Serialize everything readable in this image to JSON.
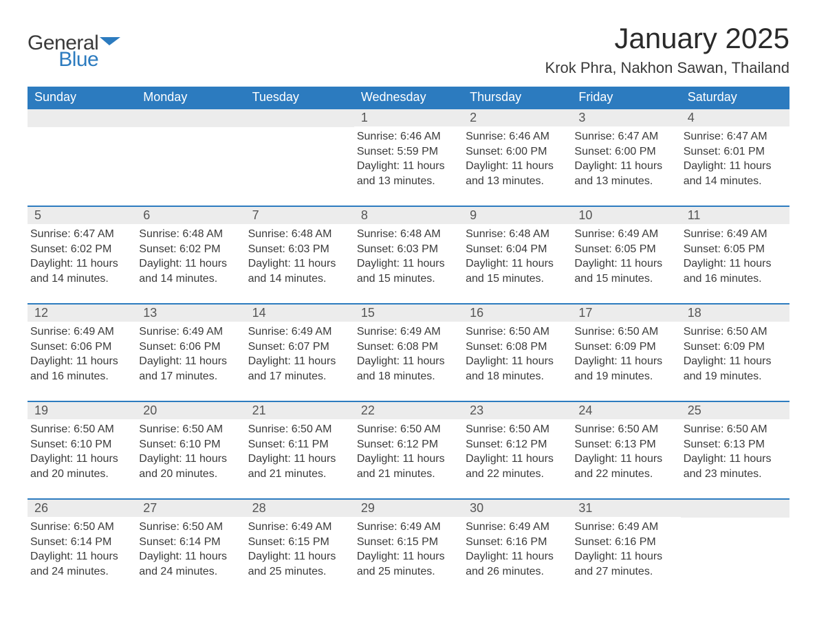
{
  "logo": {
    "text1": "General",
    "text2": "Blue",
    "flag_color": "#2c7bbf"
  },
  "title": "January 2025",
  "location": "Krok Phra, Nakhon Sawan, Thailand",
  "colors": {
    "header_bg": "#2c7bbf",
    "header_text": "#ffffff",
    "daynum_bg": "#ececec",
    "daynum_text": "#555555",
    "body_text": "#3a3a3a",
    "row_border": "#2c7bbf",
    "page_bg": "#ffffff"
  },
  "typography": {
    "title_fontsize": 42,
    "location_fontsize": 22,
    "header_fontsize": 18,
    "daynum_fontsize": 18,
    "body_fontsize": 16
  },
  "day_headers": [
    "Sunday",
    "Monday",
    "Tuesday",
    "Wednesday",
    "Thursday",
    "Friday",
    "Saturday"
  ],
  "weeks": [
    [
      {
        "blank": true
      },
      {
        "blank": true
      },
      {
        "blank": true
      },
      {
        "num": "1",
        "sunrise": "Sunrise: 6:46 AM",
        "sunset": "Sunset: 5:59 PM",
        "daylight1": "Daylight: 11 hours",
        "daylight2": "and 13 minutes."
      },
      {
        "num": "2",
        "sunrise": "Sunrise: 6:46 AM",
        "sunset": "Sunset: 6:00 PM",
        "daylight1": "Daylight: 11 hours",
        "daylight2": "and 13 minutes."
      },
      {
        "num": "3",
        "sunrise": "Sunrise: 6:47 AM",
        "sunset": "Sunset: 6:00 PM",
        "daylight1": "Daylight: 11 hours",
        "daylight2": "and 13 minutes."
      },
      {
        "num": "4",
        "sunrise": "Sunrise: 6:47 AM",
        "sunset": "Sunset: 6:01 PM",
        "daylight1": "Daylight: 11 hours",
        "daylight2": "and 14 minutes."
      }
    ],
    [
      {
        "num": "5",
        "sunrise": "Sunrise: 6:47 AM",
        "sunset": "Sunset: 6:02 PM",
        "daylight1": "Daylight: 11 hours",
        "daylight2": "and 14 minutes."
      },
      {
        "num": "6",
        "sunrise": "Sunrise: 6:48 AM",
        "sunset": "Sunset: 6:02 PM",
        "daylight1": "Daylight: 11 hours",
        "daylight2": "and 14 minutes."
      },
      {
        "num": "7",
        "sunrise": "Sunrise: 6:48 AM",
        "sunset": "Sunset: 6:03 PM",
        "daylight1": "Daylight: 11 hours",
        "daylight2": "and 14 minutes."
      },
      {
        "num": "8",
        "sunrise": "Sunrise: 6:48 AM",
        "sunset": "Sunset: 6:03 PM",
        "daylight1": "Daylight: 11 hours",
        "daylight2": "and 15 minutes."
      },
      {
        "num": "9",
        "sunrise": "Sunrise: 6:48 AM",
        "sunset": "Sunset: 6:04 PM",
        "daylight1": "Daylight: 11 hours",
        "daylight2": "and 15 minutes."
      },
      {
        "num": "10",
        "sunrise": "Sunrise: 6:49 AM",
        "sunset": "Sunset: 6:05 PM",
        "daylight1": "Daylight: 11 hours",
        "daylight2": "and 15 minutes."
      },
      {
        "num": "11",
        "sunrise": "Sunrise: 6:49 AM",
        "sunset": "Sunset: 6:05 PM",
        "daylight1": "Daylight: 11 hours",
        "daylight2": "and 16 minutes."
      }
    ],
    [
      {
        "num": "12",
        "sunrise": "Sunrise: 6:49 AM",
        "sunset": "Sunset: 6:06 PM",
        "daylight1": "Daylight: 11 hours",
        "daylight2": "and 16 minutes."
      },
      {
        "num": "13",
        "sunrise": "Sunrise: 6:49 AM",
        "sunset": "Sunset: 6:06 PM",
        "daylight1": "Daylight: 11 hours",
        "daylight2": "and 17 minutes."
      },
      {
        "num": "14",
        "sunrise": "Sunrise: 6:49 AM",
        "sunset": "Sunset: 6:07 PM",
        "daylight1": "Daylight: 11 hours",
        "daylight2": "and 17 minutes."
      },
      {
        "num": "15",
        "sunrise": "Sunrise: 6:49 AM",
        "sunset": "Sunset: 6:08 PM",
        "daylight1": "Daylight: 11 hours",
        "daylight2": "and 18 minutes."
      },
      {
        "num": "16",
        "sunrise": "Sunrise: 6:50 AM",
        "sunset": "Sunset: 6:08 PM",
        "daylight1": "Daylight: 11 hours",
        "daylight2": "and 18 minutes."
      },
      {
        "num": "17",
        "sunrise": "Sunrise: 6:50 AM",
        "sunset": "Sunset: 6:09 PM",
        "daylight1": "Daylight: 11 hours",
        "daylight2": "and 19 minutes."
      },
      {
        "num": "18",
        "sunrise": "Sunrise: 6:50 AM",
        "sunset": "Sunset: 6:09 PM",
        "daylight1": "Daylight: 11 hours",
        "daylight2": "and 19 minutes."
      }
    ],
    [
      {
        "num": "19",
        "sunrise": "Sunrise: 6:50 AM",
        "sunset": "Sunset: 6:10 PM",
        "daylight1": "Daylight: 11 hours",
        "daylight2": "and 20 minutes."
      },
      {
        "num": "20",
        "sunrise": "Sunrise: 6:50 AM",
        "sunset": "Sunset: 6:10 PM",
        "daylight1": "Daylight: 11 hours",
        "daylight2": "and 20 minutes."
      },
      {
        "num": "21",
        "sunrise": "Sunrise: 6:50 AM",
        "sunset": "Sunset: 6:11 PM",
        "daylight1": "Daylight: 11 hours",
        "daylight2": "and 21 minutes."
      },
      {
        "num": "22",
        "sunrise": "Sunrise: 6:50 AM",
        "sunset": "Sunset: 6:12 PM",
        "daylight1": "Daylight: 11 hours",
        "daylight2": "and 21 minutes."
      },
      {
        "num": "23",
        "sunrise": "Sunrise: 6:50 AM",
        "sunset": "Sunset: 6:12 PM",
        "daylight1": "Daylight: 11 hours",
        "daylight2": "and 22 minutes."
      },
      {
        "num": "24",
        "sunrise": "Sunrise: 6:50 AM",
        "sunset": "Sunset: 6:13 PM",
        "daylight1": "Daylight: 11 hours",
        "daylight2": "and 22 minutes."
      },
      {
        "num": "25",
        "sunrise": "Sunrise: 6:50 AM",
        "sunset": "Sunset: 6:13 PM",
        "daylight1": "Daylight: 11 hours",
        "daylight2": "and 23 minutes."
      }
    ],
    [
      {
        "num": "26",
        "sunrise": "Sunrise: 6:50 AM",
        "sunset": "Sunset: 6:14 PM",
        "daylight1": "Daylight: 11 hours",
        "daylight2": "and 24 minutes."
      },
      {
        "num": "27",
        "sunrise": "Sunrise: 6:50 AM",
        "sunset": "Sunset: 6:14 PM",
        "daylight1": "Daylight: 11 hours",
        "daylight2": "and 24 minutes."
      },
      {
        "num": "28",
        "sunrise": "Sunrise: 6:49 AM",
        "sunset": "Sunset: 6:15 PM",
        "daylight1": "Daylight: 11 hours",
        "daylight2": "and 25 minutes."
      },
      {
        "num": "29",
        "sunrise": "Sunrise: 6:49 AM",
        "sunset": "Sunset: 6:15 PM",
        "daylight1": "Daylight: 11 hours",
        "daylight2": "and 25 minutes."
      },
      {
        "num": "30",
        "sunrise": "Sunrise: 6:49 AM",
        "sunset": "Sunset: 6:16 PM",
        "daylight1": "Daylight: 11 hours",
        "daylight2": "and 26 minutes."
      },
      {
        "num": "31",
        "sunrise": "Sunrise: 6:49 AM",
        "sunset": "Sunset: 6:16 PM",
        "daylight1": "Daylight: 11 hours",
        "daylight2": "and 27 minutes."
      },
      {
        "blank": true
      }
    ]
  ]
}
